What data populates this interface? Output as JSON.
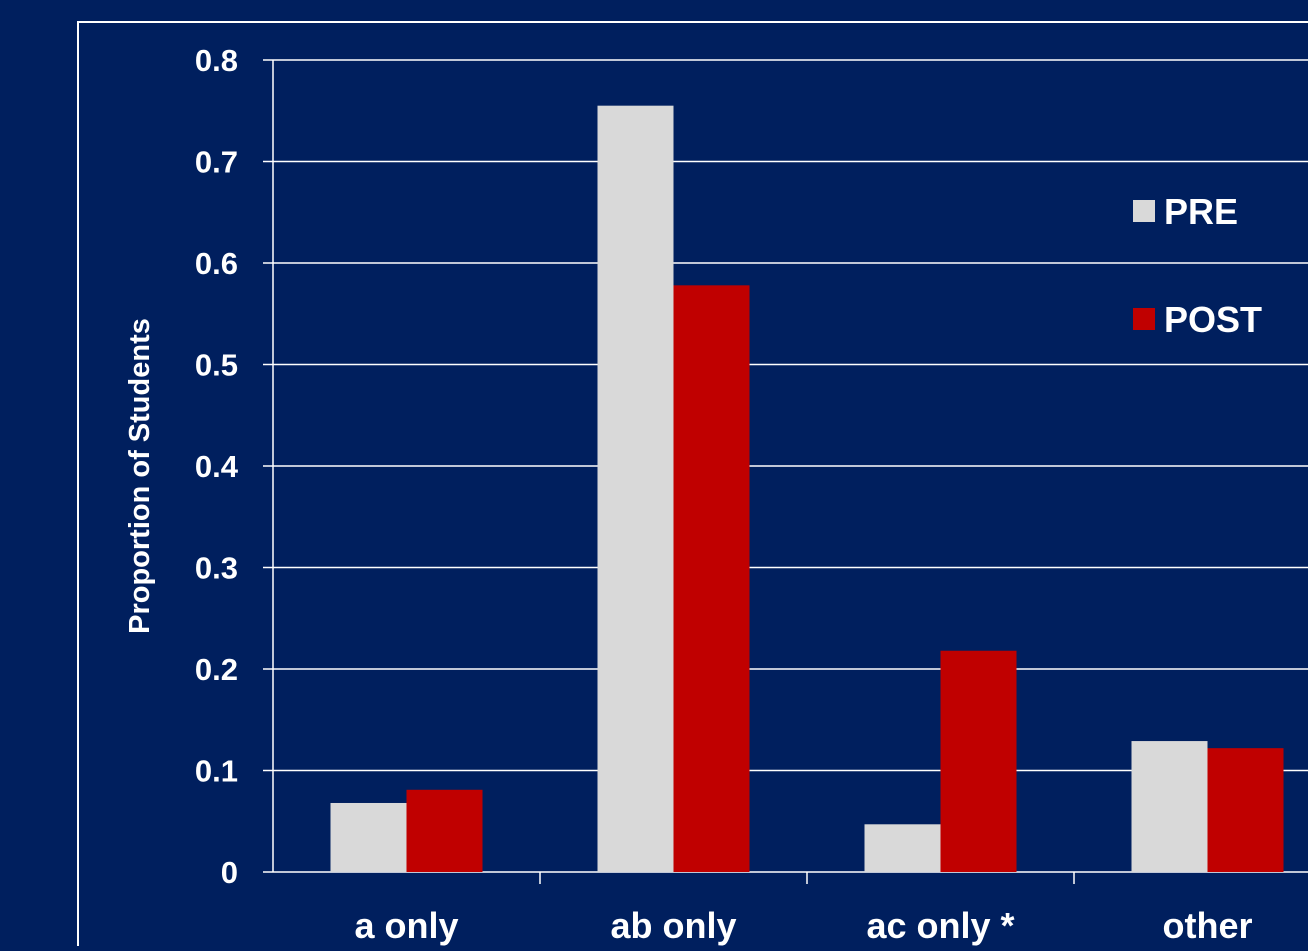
{
  "chart_data": {
    "type": "bar",
    "title": "",
    "xlabel": "",
    "ylabel": "Proportion of Students",
    "ylim": [
      0,
      0.8
    ],
    "yticks": [
      0,
      0.1,
      0.2,
      0.3,
      0.4,
      0.5,
      0.6,
      0.7,
      0.8
    ],
    "ytick_labels": [
      "0",
      "0.1",
      "0.2",
      "0.3",
      "0.4",
      "0.5",
      "0.6",
      "0.7",
      "0.8"
    ],
    "categories": [
      "a only",
      "ab only",
      "ac only *",
      "other"
    ],
    "series": [
      {
        "name": "PRE",
        "values": [
          0.068,
          0.755,
          0.047,
          0.129
        ],
        "color": "#d9d9d9"
      },
      {
        "name": "POST",
        "values": [
          0.081,
          0.578,
          0.218,
          0.122
        ],
        "color": "#c00000"
      }
    ],
    "grid": true,
    "legend_position": "top-right",
    "colors": {
      "background": "#001f5e",
      "text": "#ffffff",
      "gridline": "#ffffff"
    }
  }
}
